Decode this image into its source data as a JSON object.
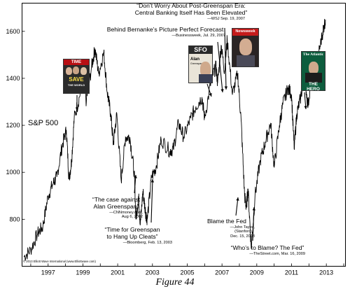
{
  "chart_data": {
    "type": "line",
    "title": "",
    "xlabel": "",
    "ylabel": "",
    "series_label": "S&P 500",
    "x_ticks": [
      "1997",
      "1999",
      "2001",
      "2003",
      "2005",
      "2007",
      "2009",
      "2011",
      "2013"
    ],
    "y_ticks": [
      800,
      1000,
      1200,
      1400,
      1600
    ],
    "xlim": [
      1996.0,
      2014.6
    ],
    "ylim": [
      600,
      1720
    ],
    "series": [
      {
        "points": [
          [
            1996.1,
            640
          ],
          [
            1996.5,
            670
          ],
          [
            1996.9,
            740
          ],
          [
            1997.2,
            770
          ],
          [
            1997.5,
            900
          ],
          [
            1997.8,
            955
          ],
          [
            1998.0,
            980
          ],
          [
            1998.3,
            1110
          ],
          [
            1998.55,
            1180
          ],
          [
            1998.7,
            970
          ],
          [
            1998.85,
            1050
          ],
          [
            1999.0,
            1230
          ],
          [
            1999.3,
            1320
          ],
          [
            1999.5,
            1400
          ],
          [
            1999.7,
            1300
          ],
          [
            2000.0,
            1450
          ],
          [
            2000.2,
            1527
          ],
          [
            2000.4,
            1420
          ],
          [
            2000.7,
            1510
          ],
          [
            2000.9,
            1340
          ],
          [
            2001.1,
            1250
          ],
          [
            2001.25,
            1120
          ],
          [
            2001.45,
            1250
          ],
          [
            2001.7,
            965
          ],
          [
            2001.95,
            1150
          ],
          [
            2002.2,
            1150
          ],
          [
            2002.45,
            1000
          ],
          [
            2002.55,
            800
          ],
          [
            2002.7,
            900
          ],
          [
            2002.8,
            777
          ],
          [
            2002.95,
            920
          ],
          [
            2003.1,
            830
          ],
          [
            2003.2,
            800
          ],
          [
            2003.45,
            980
          ],
          [
            2003.7,
            1020
          ],
          [
            2004.0,
            1140
          ],
          [
            2004.5,
            1090
          ],
          [
            2004.7,
            1100
          ],
          [
            2005.0,
            1210
          ],
          [
            2005.3,
            1150
          ],
          [
            2005.7,
            1230
          ],
          [
            2006.0,
            1280
          ],
          [
            2006.35,
            1320
          ],
          [
            2006.5,
            1230
          ],
          [
            2006.9,
            1400
          ],
          [
            2007.15,
            1450
          ],
          [
            2007.25,
            1380
          ],
          [
            2007.45,
            1540
          ],
          [
            2007.65,
            1430
          ],
          [
            2007.8,
            1565
          ],
          [
            2008.1,
            1330
          ],
          [
            2008.4,
            1420
          ],
          [
            2008.6,
            1220
          ],
          [
            2008.8,
            900
          ],
          [
            2008.9,
            850
          ],
          [
            2009.0,
            930
          ],
          [
            2009.18,
            676
          ],
          [
            2009.4,
            900
          ],
          [
            2009.7,
            1050
          ],
          [
            2010.0,
            1130
          ],
          [
            2010.3,
            1210
          ],
          [
            2010.5,
            1020
          ],
          [
            2010.8,
            1200
          ],
          [
            2011.0,
            1290
          ],
          [
            2011.3,
            1360
          ],
          [
            2011.5,
            1330
          ],
          [
            2011.65,
            1100
          ],
          [
            2011.8,
            1250
          ],
          [
            2012.0,
            1310
          ],
          [
            2012.25,
            1410
          ],
          [
            2012.45,
            1280
          ],
          [
            2012.7,
            1460
          ],
          [
            2012.9,
            1380
          ],
          [
            2013.05,
            1500
          ],
          [
            2013.3,
            1600
          ],
          [
            2013.45,
            1650
          ]
        ]
      }
    ],
    "annotations": [
      {
        "text": "“The case against",
        "text2": "Alan Greenspan”",
        "source": "—CNNmoney.com,",
        "source2": "Aug 6, 2002",
        "x": 2002.55,
        "y": 800
      },
      {
        "text": "“Time for Greenspan",
        "text2": "to Hang Up Cleats”",
        "source": "—Bloomberg, Feb. 13, 2003",
        "source2": "",
        "x": 2003.15,
        "y": 800
      },
      {
        "text": "Behind Bernanke’s Picture Perfect Forecast",
        "text2": "",
        "source": "—Businessweek, Jul. 29, 2007",
        "source2": "",
        "x": 2007.55,
        "y": 1540
      },
      {
        "text": "“Don’t Worry About Post-Greenspan Era:",
        "text2": "Central Banking Itself Has Been Elevated”",
        "source": "—WSJ Sep. 19, 2007",
        "source2": "",
        "x": 2007.75,
        "y": 1565
      },
      {
        "text": "Blame the Fed",
        "text2": "",
        "source": "—John Taylor,",
        "source2": "(Stanford)",
        "source3": "Dec. 15, 2008",
        "x": 2008.85,
        "y": 860
      },
      {
        "text": "“Who’s to Blame? The Fed”",
        "text2": "",
        "source": "—TheStreet.com, Mar. 16, 2009",
        "source2": "",
        "x": 2009.2,
        "y": 676
      }
    ]
  },
  "covers": [
    {
      "name": "time-cover",
      "masthead": "TIME",
      "headline": "SAVE",
      "sub": "THE WORLD",
      "color": "#b80f14",
      "x": 1998.9,
      "y": 1470
    },
    {
      "name": "sfo-cover",
      "masthead": "SFO",
      "headline": "Alan",
      "sub": "Greenspan",
      "color": "#2a2a2a",
      "x": 2006.9,
      "y": 1400
    },
    {
      "name": "newsweek-cover",
      "masthead": "Newsweek",
      "headline": "",
      "sub": "",
      "color": "#c41b1b",
      "x": 2007.8,
      "y": 1565
    },
    {
      "name": "atlantic-cover",
      "masthead": "The Atlantic",
      "headline": "THE HERO",
      "sub": "",
      "color": "#0d5c3d",
      "x": 2012.3,
      "y": 1410
    }
  ],
  "copyright": "© 2013 Elliott Wave International (www.Elliottwave.com)",
  "figure_caption": "Figure 44"
}
